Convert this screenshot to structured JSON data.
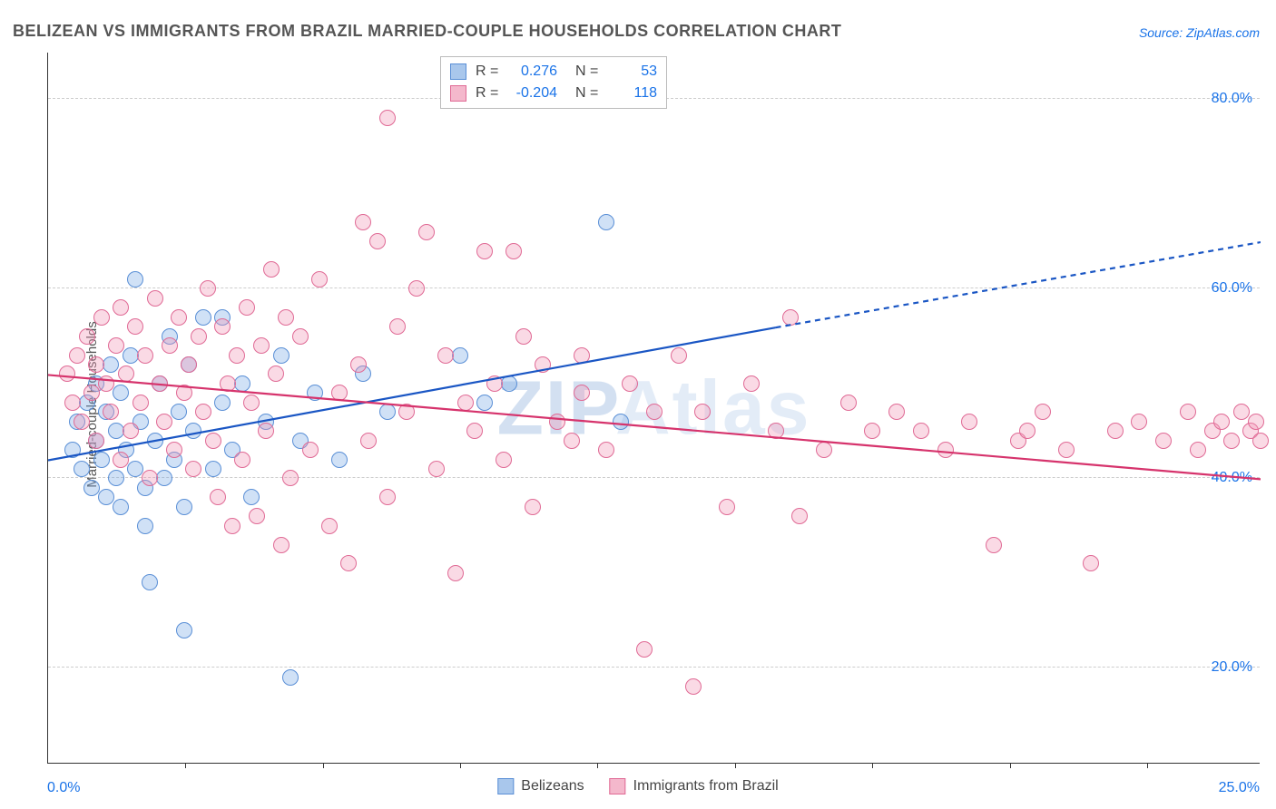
{
  "title": "BELIZEAN VS IMMIGRANTS FROM BRAZIL MARRIED-COUPLE HOUSEHOLDS CORRELATION CHART",
  "source": "Source: ZipAtlas.com",
  "watermark_a": "ZIP",
  "watermark_b": "Atlas",
  "chart": {
    "type": "scatter",
    "background_color": "#ffffff",
    "grid_color": "#cccccc",
    "axis_color": "#333333",
    "ylabel": "Married-couple Households",
    "ylabel_fontsize": 15,
    "tick_label_fontsize": 16,
    "tick_label_color": "#1a73e8",
    "xlim": [
      0,
      25
    ],
    "ylim": [
      10,
      85
    ],
    "x_ticks": [
      0,
      25
    ],
    "x_minor_ticks": [
      2.83,
      5.67,
      8.5,
      11.33,
      14.17,
      17,
      19.83,
      22.67
    ],
    "y_ticks": [
      20,
      40,
      60,
      80
    ],
    "y_tick_labels": [
      "20.0%",
      "40.0%",
      "60.0%",
      "80.0%"
    ],
    "x_tick_labels": [
      "0.0%",
      "25.0%"
    ],
    "point_radius": 9,
    "point_border_width": 1.2,
    "series": [
      {
        "name": "Belizeans",
        "fill": "rgba(120,170,230,0.35)",
        "stroke": "#5a8fd6",
        "swatch_fill": "#a9c7ec",
        "swatch_border": "#5a8fd6",
        "R": "0.276",
        "N": "53",
        "trend": {
          "x1": 0,
          "y1": 42,
          "x2": 15,
          "y2": 56,
          "dash_x2": 25,
          "dash_y2": 65,
          "color": "#1a56c4",
          "width": 2.2
        },
        "points": [
          [
            0.5,
            43
          ],
          [
            0.6,
            46
          ],
          [
            0.7,
            41
          ],
          [
            0.8,
            48
          ],
          [
            0.9,
            39
          ],
          [
            1.0,
            44
          ],
          [
            1.0,
            50
          ],
          [
            1.1,
            42
          ],
          [
            1.2,
            47
          ],
          [
            1.2,
            38
          ],
          [
            1.3,
            52
          ],
          [
            1.4,
            40
          ],
          [
            1.4,
            45
          ],
          [
            1.5,
            37
          ],
          [
            1.5,
            49
          ],
          [
            1.6,
            43
          ],
          [
            1.7,
            53
          ],
          [
            1.8,
            41
          ],
          [
            1.8,
            61
          ],
          [
            1.9,
            46
          ],
          [
            2.0,
            39
          ],
          [
            2.0,
            35
          ],
          [
            2.1,
            29
          ],
          [
            2.2,
            44
          ],
          [
            2.3,
            50
          ],
          [
            2.4,
            40
          ],
          [
            2.5,
            55
          ],
          [
            2.6,
            42
          ],
          [
            2.7,
            47
          ],
          [
            2.8,
            37
          ],
          [
            2.8,
            24
          ],
          [
            2.9,
            52
          ],
          [
            3.0,
            45
          ],
          [
            3.2,
            57
          ],
          [
            3.4,
            41
          ],
          [
            3.6,
            48
          ],
          [
            3.6,
            57
          ],
          [
            3.8,
            43
          ],
          [
            4.0,
            50
          ],
          [
            4.2,
            38
          ],
          [
            4.5,
            46
          ],
          [
            4.8,
            53
          ],
          [
            5.0,
            19
          ],
          [
            5.2,
            44
          ],
          [
            5.5,
            49
          ],
          [
            6.0,
            42
          ],
          [
            6.5,
            51
          ],
          [
            7.0,
            47
          ],
          [
            8.5,
            53
          ],
          [
            9.0,
            48
          ],
          [
            9.5,
            50
          ],
          [
            11.5,
            67
          ],
          [
            11.8,
            46
          ]
        ]
      },
      {
        "name": "Immigrants from Brazil",
        "fill": "rgba(240,150,180,0.35)",
        "stroke": "#e06a95",
        "swatch_fill": "#f4b8cc",
        "swatch_border": "#e06a95",
        "R": "-0.204",
        "N": "118",
        "trend": {
          "x1": 0,
          "y1": 51,
          "x2": 25,
          "y2": 40,
          "dash_x2": 25,
          "dash_y2": 40,
          "color": "#d6336c",
          "width": 2.2
        },
        "points": [
          [
            0.4,
            51
          ],
          [
            0.5,
            48
          ],
          [
            0.6,
            53
          ],
          [
            0.7,
            46
          ],
          [
            0.8,
            55
          ],
          [
            0.9,
            49
          ],
          [
            1.0,
            52
          ],
          [
            1.0,
            44
          ],
          [
            1.1,
            57
          ],
          [
            1.2,
            50
          ],
          [
            1.3,
            47
          ],
          [
            1.4,
            54
          ],
          [
            1.5,
            42
          ],
          [
            1.5,
            58
          ],
          [
            1.6,
            51
          ],
          [
            1.7,
            45
          ],
          [
            1.8,
            56
          ],
          [
            1.9,
            48
          ],
          [
            2.0,
            53
          ],
          [
            2.1,
            40
          ],
          [
            2.2,
            59
          ],
          [
            2.3,
            50
          ],
          [
            2.4,
            46
          ],
          [
            2.5,
            54
          ],
          [
            2.6,
            43
          ],
          [
            2.7,
            57
          ],
          [
            2.8,
            49
          ],
          [
            2.9,
            52
          ],
          [
            3.0,
            41
          ],
          [
            3.1,
            55
          ],
          [
            3.2,
            47
          ],
          [
            3.3,
            60
          ],
          [
            3.4,
            44
          ],
          [
            3.5,
            38
          ],
          [
            3.6,
            56
          ],
          [
            3.7,
            50
          ],
          [
            3.8,
            35
          ],
          [
            3.9,
            53
          ],
          [
            4.0,
            42
          ],
          [
            4.1,
            58
          ],
          [
            4.2,
            48
          ],
          [
            4.3,
            36
          ],
          [
            4.4,
            54
          ],
          [
            4.5,
            45
          ],
          [
            4.6,
            62
          ],
          [
            4.7,
            51
          ],
          [
            4.8,
            33
          ],
          [
            4.9,
            57
          ],
          [
            5.0,
            40
          ],
          [
            5.2,
            55
          ],
          [
            5.4,
            43
          ],
          [
            5.6,
            61
          ],
          [
            5.8,
            35
          ],
          [
            6.0,
            49
          ],
          [
            6.2,
            31
          ],
          [
            6.4,
            52
          ],
          [
            6.5,
            67
          ],
          [
            6.6,
            44
          ],
          [
            6.8,
            65
          ],
          [
            7.0,
            38
          ],
          [
            7.0,
            78
          ],
          [
            7.2,
            56
          ],
          [
            7.4,
            47
          ],
          [
            7.6,
            60
          ],
          [
            7.8,
            66
          ],
          [
            8.0,
            41
          ],
          [
            8.2,
            53
          ],
          [
            8.4,
            30
          ],
          [
            8.6,
            48
          ],
          [
            8.8,
            45
          ],
          [
            9.0,
            64
          ],
          [
            9.2,
            50
          ],
          [
            9.4,
            42
          ],
          [
            9.6,
            64
          ],
          [
            9.8,
            55
          ],
          [
            10.0,
            37
          ],
          [
            10.2,
            52
          ],
          [
            10.5,
            46
          ],
          [
            10.8,
            44
          ],
          [
            11.0,
            49
          ],
          [
            11.0,
            53
          ],
          [
            11.5,
            43
          ],
          [
            12.0,
            50
          ],
          [
            12.3,
            22
          ],
          [
            12.5,
            47
          ],
          [
            13.0,
            53
          ],
          [
            13.3,
            18
          ],
          [
            13.5,
            47
          ],
          [
            14.0,
            37
          ],
          [
            14.5,
            50
          ],
          [
            15.0,
            45
          ],
          [
            15.3,
            57
          ],
          [
            15.5,
            36
          ],
          [
            16.0,
            43
          ],
          [
            16.5,
            48
          ],
          [
            17.0,
            45
          ],
          [
            17.5,
            47
          ],
          [
            18.0,
            45
          ],
          [
            18.5,
            43
          ],
          [
            19.0,
            46
          ],
          [
            19.5,
            33
          ],
          [
            20.0,
            44
          ],
          [
            20.2,
            45
          ],
          [
            20.5,
            47
          ],
          [
            21.0,
            43
          ],
          [
            21.5,
            31
          ],
          [
            22.0,
            45
          ],
          [
            22.5,
            46
          ],
          [
            23.0,
            44
          ],
          [
            23.5,
            47
          ],
          [
            23.7,
            43
          ],
          [
            24.0,
            45
          ],
          [
            24.2,
            46
          ],
          [
            24.4,
            44
          ],
          [
            24.6,
            47
          ],
          [
            24.8,
            45
          ],
          [
            24.9,
            46
          ],
          [
            25.0,
            44
          ]
        ]
      }
    ],
    "legend_bottom": [
      {
        "label": "Belizeans",
        "series_index": 0
      },
      {
        "label": "Immigrants from Brazil",
        "series_index": 1
      }
    ]
  }
}
